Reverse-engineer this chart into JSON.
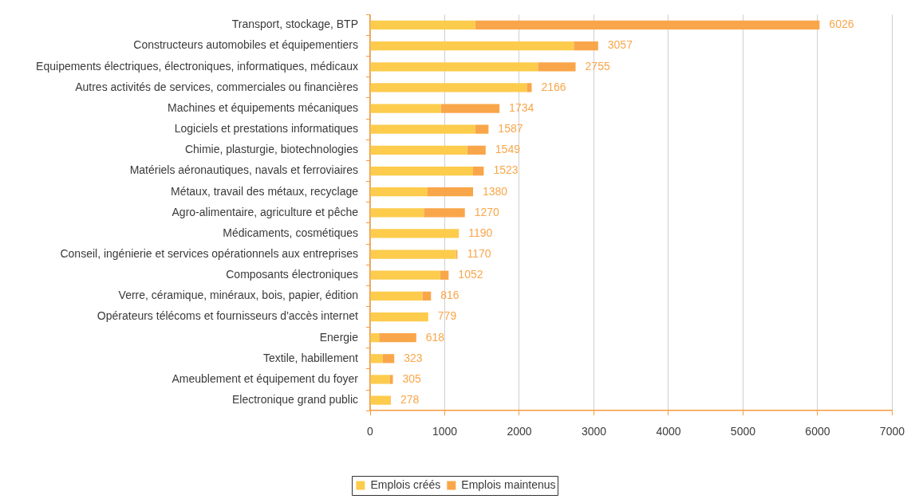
{
  "chart_data": {
    "type": "bar",
    "orientation": "horizontal",
    "stacked": true,
    "categories": [
      "Transport, stockage, BTP",
      "Constructeurs automobiles et équipementiers",
      "Equipements électriques, électroniques, informatiques, médicaux",
      "Autres activités de services, commerciales ou financières",
      "Machines et équipements mécaniques",
      "Logiciels et prestations informatiques",
      "Chimie, plasturgie, biotechnologies",
      "Matériels aéronautiques, navals et ferroviaires",
      "Métaux, travail des métaux, recyclage",
      "Agro-alimentaire, agriculture et pêche",
      "Médicaments, cosmétiques",
      "Conseil, ingénierie et services opérationnels aux entreprises",
      "Composants électroniques",
      "Verre, céramique, minéraux, bois, papier, édition",
      "Opérateurs télécoms et fournisseurs d'accès internet",
      "Energie",
      "Textile, habillement",
      "Ameublement et équipement du foyer",
      "Electronique grand public"
    ],
    "series": [
      {
        "name": "Emplois créés",
        "color": "#fdcc4d",
        "values": [
          1410,
          2730,
          2250,
          2100,
          950,
          1410,
          1300,
          1380,
          770,
          720,
          1190,
          1150,
          940,
          700,
          779,
          120,
          170,
          260,
          270
        ]
      },
      {
        "name": "Emplois maintenus",
        "color": "#f9a64a",
        "values": [
          4616,
          327,
          505,
          66,
          784,
          177,
          249,
          143,
          610,
          550,
          0,
          20,
          112,
          116,
          0,
          498,
          153,
          45,
          8
        ]
      }
    ],
    "totals": [
      "6026",
      "3057",
      "2755",
      "2166",
      "1734",
      "1587",
      "1549",
      "1523",
      "1380",
      "1270",
      "1190",
      "1170",
      "1052",
      "816",
      "779",
      "618",
      "323",
      "305",
      "278"
    ],
    "xlim": [
      0,
      7000
    ],
    "xticks": [
      0,
      1000,
      2000,
      3000,
      4000,
      5000,
      6000,
      7000
    ],
    "grid": "x",
    "legend": "bottom"
  }
}
